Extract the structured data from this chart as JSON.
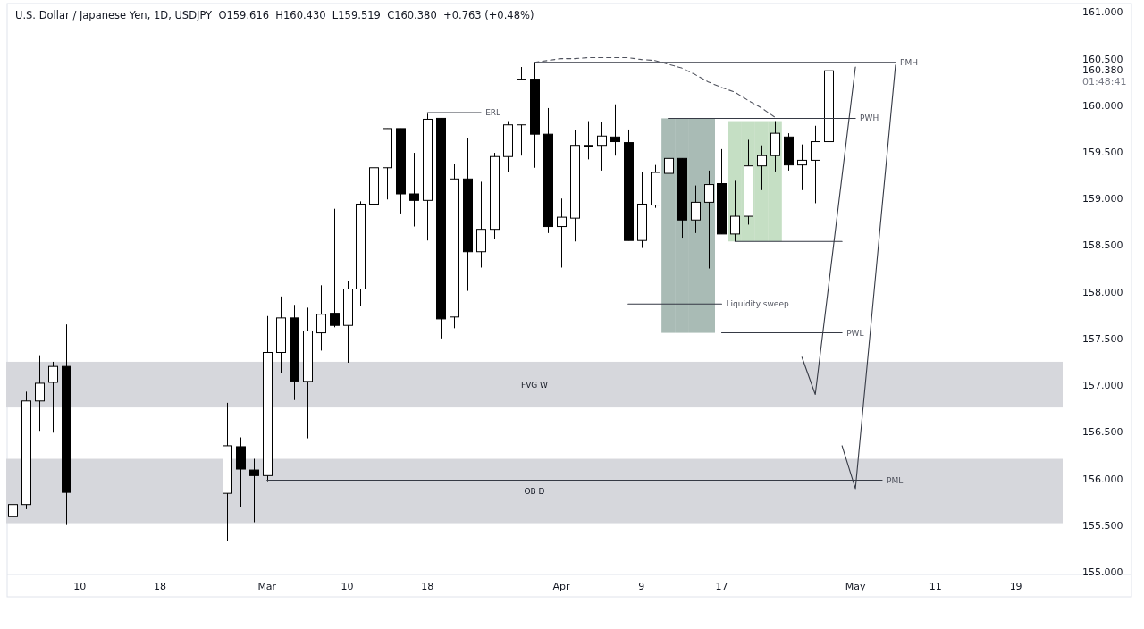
{
  "chart_data": {
    "type": "candlestick",
    "title": "U.S. Dollar / Japanese Yen, 1D, USDJPY  O159.616  H160.430  L159.519  C160.380  +0.763 (+0.48%)",
    "color": "#000000",
    "categories": [
      null,
      null,
      null,
      null,
      null,
      "10",
      null,
      null,
      null,
      null,
      null,
      "18",
      null,
      null,
      null,
      null,
      null,
      null,
      null,
      "Mar",
      null,
      null,
      null,
      null,
      null,
      "10",
      null,
      null,
      null,
      null,
      null,
      "18",
      null,
      null,
      null,
      null,
      null,
      null,
      null,
      null,
      null,
      "Apr",
      null,
      null,
      null,
      null,
      null,
      "9",
      null,
      null,
      null,
      null,
      null,
      "17",
      null,
      null,
      null,
      null,
      null,
      null,
      null,
      null,
      null,
      "May",
      null,
      null,
      null,
      null,
      null,
      "11",
      null,
      null,
      null,
      null,
      null,
      "19",
      null,
      null,
      null
    ],
    "ohlc": [
      [
        155.6,
        156.08,
        155.28,
        155.73
      ],
      [
        155.73,
        156.94,
        155.68,
        156.84
      ],
      [
        156.84,
        157.33,
        156.52,
        157.03
      ],
      [
        157.04,
        157.26,
        156.5,
        157.21
      ],
      [
        157.21,
        157.66,
        155.51,
        155.86
      ],
      null,
      null,
      null,
      null,
      null,
      null,
      null,
      null,
      null,
      null,
      null,
      [
        155.85,
        156.82,
        155.34,
        156.36
      ],
      [
        156.35,
        156.45,
        155.7,
        156.11
      ],
      [
        156.1,
        156.22,
        155.54,
        156.04
      ],
      [
        156.04,
        157.75,
        155.98,
        157.36
      ],
      [
        157.36,
        157.96,
        157.14,
        157.73
      ],
      [
        157.73,
        157.87,
        156.85,
        157.05
      ],
      [
        157.05,
        157.84,
        156.44,
        157.59
      ],
      [
        157.57,
        158.08,
        157.38,
        157.77
      ],
      [
        157.78,
        158.9,
        157.63,
        157.65
      ],
      [
        157.65,
        158.13,
        157.25,
        158.04
      ],
      [
        158.04,
        158.98,
        157.86,
        158.95
      ],
      [
        158.95,
        159.43,
        158.56,
        159.34
      ],
      [
        159.34,
        159.76,
        159.0,
        159.76
      ],
      [
        159.76,
        159.76,
        158.85,
        159.06
      ],
      [
        159.06,
        159.5,
        158.71,
        158.99
      ],
      [
        158.99,
        159.92,
        158.56,
        159.86
      ],
      [
        159.87,
        159.87,
        157.51,
        157.72
      ],
      [
        157.74,
        159.38,
        157.62,
        159.22
      ],
      [
        159.22,
        159.66,
        158.02,
        158.44
      ],
      [
        158.44,
        159.19,
        158.27,
        158.68
      ],
      [
        158.68,
        159.5,
        158.58,
        159.46
      ],
      [
        159.46,
        159.84,
        159.29,
        159.8
      ],
      [
        159.8,
        160.42,
        159.47,
        160.29
      ],
      [
        160.29,
        160.47,
        159.34,
        159.7
      ],
      [
        159.7,
        159.98,
        158.64,
        158.71
      ],
      [
        158.71,
        159.01,
        158.27,
        158.81
      ],
      [
        158.8,
        159.74,
        158.55,
        159.58
      ],
      [
        159.58,
        159.84,
        159.43,
        159.58
      ],
      [
        159.58,
        159.83,
        159.31,
        159.68
      ],
      [
        159.67,
        160.02,
        159.47,
        159.62
      ],
      [
        159.61,
        159.75,
        158.56,
        158.56
      ],
      [
        158.56,
        159.29,
        158.48,
        158.95
      ],
      [
        158.94,
        159.37,
        158.91,
        159.29
      ],
      [
        159.28,
        159.44,
        159.28,
        159.44
      ],
      [
        159.44,
        159.44,
        158.59,
        158.78
      ],
      [
        158.78,
        159.15,
        158.64,
        158.97
      ],
      [
        158.97,
        159.31,
        158.26,
        159.16
      ],
      [
        159.17,
        159.54,
        158.63,
        158.63
      ],
      [
        158.63,
        159.2,
        158.55,
        158.82
      ],
      [
        158.82,
        159.64,
        158.73,
        159.36
      ],
      [
        159.36,
        159.58,
        159.1,
        159.47
      ],
      [
        159.47,
        159.84,
        159.3,
        159.71
      ],
      [
        159.67,
        159.71,
        159.31,
        159.37
      ],
      [
        159.37,
        159.59,
        159.1,
        159.42
      ],
      [
        159.42,
        159.79,
        158.96,
        159.62
      ],
      [
        159.62,
        160.43,
        159.52,
        160.38
      ],
      null,
      null,
      null,
      null,
      null,
      null,
      null,
      null,
      null,
      null,
      null,
      null,
      null,
      null,
      null,
      null,
      null
    ],
    "ylim": [
      154.98,
      161.1
    ],
    "yticks": [
      {
        "value": 155,
        "label": "155.000"
      },
      {
        "value": 155.5,
        "label": "155.500"
      },
      {
        "value": 156,
        "label": "156.000"
      },
      {
        "value": 156.5,
        "label": "156.500"
      },
      {
        "value": 157,
        "label": "157.000"
      },
      {
        "value": 157.5,
        "label": "157.500"
      },
      {
        "value": 158,
        "label": "158.000"
      },
      {
        "value": 158.5,
        "label": "158.500"
      },
      {
        "value": 159,
        "label": "159.000"
      },
      {
        "value": 159.5,
        "label": "159.500"
      },
      {
        "value": 160,
        "label": "160.000"
      },
      {
        "value": 160.38,
        "label": "160.380"
      },
      {
        "value": 160.5,
        "label": "160.500"
      },
      {
        "value": 161,
        "label": "161.000"
      }
    ],
    "bands": [
      {
        "axis": "y",
        "from": 156.77,
        "to": 157.26,
        "label": "FVG W",
        "color": "#d6d7dc"
      },
      {
        "axis": "y",
        "from": 155.53,
        "to": 156.22,
        "label": "OB D",
        "color": "#d6d7dc"
      }
    ],
    "series": [
      {
        "type": "bar",
        "color": "#a9bbb5",
        "values": [
          null,
          null,
          null,
          null,
          null,
          null,
          null,
          null,
          null,
          null,
          null,
          null,
          null,
          null,
          null,
          null,
          null,
          null,
          null,
          null,
          null,
          null,
          null,
          null,
          null,
          null,
          null,
          null,
          null,
          null,
          null,
          null,
          null,
          null,
          null,
          null,
          null,
          null,
          null,
          null,
          null,
          null,
          null,
          null,
          null,
          null,
          null,
          null,
          null,
          2.3,
          2.3,
          2.3,
          2.3,
          null,
          null,
          null,
          null,
          null,
          null,
          null,
          null,
          null,
          null,
          null,
          null,
          null,
          null,
          null,
          null,
          null,
          null,
          null,
          null,
          null,
          null,
          null,
          null,
          null,
          null
        ],
        "base": [
          null,
          null,
          null,
          null,
          null,
          null,
          null,
          null,
          null,
          null,
          null,
          null,
          null,
          null,
          null,
          null,
          null,
          null,
          null,
          null,
          null,
          null,
          null,
          null,
          null,
          null,
          null,
          null,
          null,
          null,
          null,
          null,
          null,
          null,
          null,
          null,
          null,
          null,
          null,
          null,
          null,
          null,
          null,
          null,
          null,
          null,
          null,
          null,
          null,
          157.57,
          157.57,
          157.57,
          157.57,
          null,
          null,
          null,
          null,
          null,
          null,
          null,
          null,
          null,
          null,
          null,
          null,
          null,
          null,
          null,
          null,
          null,
          null,
          null,
          null,
          null,
          null,
          null,
          null,
          null,
          null
        ]
      },
      {
        "type": "bar",
        "color": "#c5dfc4",
        "values": [
          null,
          null,
          null,
          null,
          null,
          null,
          null,
          null,
          null,
          null,
          null,
          null,
          null,
          null,
          null,
          null,
          null,
          null,
          null,
          null,
          null,
          null,
          null,
          null,
          null,
          null,
          null,
          null,
          null,
          null,
          null,
          null,
          null,
          null,
          null,
          null,
          null,
          null,
          null,
          null,
          null,
          null,
          null,
          null,
          null,
          null,
          null,
          null,
          null,
          null,
          null,
          null,
          null,
          null,
          1.29,
          1.29,
          1.29,
          1.29,
          null,
          null,
          null,
          null,
          null,
          null,
          null,
          null,
          null,
          null,
          null,
          null,
          null,
          null,
          null,
          null,
          null,
          null,
          null,
          null,
          null
        ],
        "base": [
          null,
          null,
          null,
          null,
          null,
          null,
          null,
          null,
          null,
          null,
          null,
          null,
          null,
          null,
          null,
          null,
          null,
          null,
          null,
          null,
          null,
          null,
          null,
          null,
          null,
          null,
          null,
          null,
          null,
          null,
          null,
          null,
          null,
          null,
          null,
          null,
          null,
          null,
          null,
          null,
          null,
          null,
          null,
          null,
          null,
          null,
          null,
          null,
          null,
          null,
          null,
          null,
          null,
          null,
          158.55,
          158.55,
          158.55,
          158.55,
          null,
          null,
          null,
          null,
          null,
          null,
          null,
          null,
          null,
          null,
          null,
          null,
          null,
          null,
          null,
          null,
          null,
          null,
          null,
          null,
          null
        ]
      },
      {
        "type": "line",
        "name": "ERL",
        "color": "#363a45",
        "values": [
          null,
          null,
          null,
          null,
          null,
          null,
          null,
          null,
          null,
          null,
          null,
          null,
          null,
          null,
          null,
          null,
          null,
          null,
          null,
          null,
          null,
          null,
          null,
          null,
          null,
          null,
          null,
          null,
          null,
          null,
          null,
          159.93,
          159.93,
          159.93,
          159.93,
          159.93,
          null,
          null,
          null,
          null,
          null,
          null,
          null,
          null,
          null,
          null,
          null,
          null,
          null,
          null,
          null,
          null,
          null,
          null,
          null,
          null,
          null,
          null,
          null,
          null,
          null,
          null,
          null,
          null,
          null,
          null,
          null,
          null,
          null,
          null,
          null,
          null,
          null,
          null,
          null,
          null,
          null,
          null,
          null
        ]
      },
      {
        "type": "line",
        "name": "PMH",
        "color": "#363a45",
        "values": [
          null,
          null,
          null,
          null,
          null,
          null,
          null,
          null,
          null,
          null,
          null,
          null,
          null,
          null,
          null,
          null,
          null,
          null,
          null,
          null,
          null,
          null,
          null,
          null,
          null,
          null,
          null,
          null,
          null,
          null,
          null,
          null,
          null,
          null,
          null,
          null,
          null,
          null,
          null,
          160.47,
          160.47,
          160.47,
          160.47,
          160.47,
          160.47,
          160.47,
          160.47,
          160.47,
          160.47,
          160.47,
          160.47,
          160.47,
          160.47,
          160.47,
          160.47,
          160.47,
          160.47,
          160.47,
          160.47,
          160.47,
          160.47,
          160.47,
          160.47,
          160.47,
          160.47,
          160.47,
          160.47,
          null,
          null,
          null,
          null,
          null,
          null,
          null,
          null,
          null,
          null,
          null,
          null
        ]
      },
      {
        "type": "line",
        "color": "#50535e",
        "line_style": "dashed",
        "values": [
          null,
          null,
          null,
          null,
          null,
          null,
          null,
          null,
          null,
          null,
          null,
          null,
          null,
          null,
          null,
          null,
          null,
          null,
          null,
          null,
          null,
          null,
          null,
          null,
          null,
          null,
          null,
          null,
          null,
          null,
          null,
          null,
          null,
          null,
          null,
          null,
          null,
          null,
          null,
          160.47,
          160.49,
          160.51,
          160.51,
          160.52,
          160.52,
          160.52,
          160.52,
          160.5,
          160.49,
          160.45,
          160.41,
          160.34,
          160.26,
          160.2,
          160.15,
          160.06,
          159.98,
          159.88,
          null,
          null,
          null,
          null,
          null,
          null,
          null,
          null,
          null,
          null,
          null,
          null,
          null,
          null,
          null,
          null,
          null,
          null,
          null,
          null,
          null
        ]
      },
      {
        "type": "line",
        "name": "PWH",
        "color": "#363a45",
        "values": [
          null,
          null,
          null,
          null,
          null,
          null,
          null,
          null,
          null,
          null,
          null,
          null,
          null,
          null,
          null,
          null,
          null,
          null,
          null,
          null,
          null,
          null,
          null,
          null,
          null,
          null,
          null,
          null,
          null,
          null,
          null,
          null,
          null,
          null,
          null,
          null,
          null,
          null,
          null,
          null,
          null,
          null,
          null,
          null,
          null,
          null,
          null,
          null,
          null,
          159.87,
          159.87,
          159.87,
          159.87,
          159.87,
          159.87,
          159.87,
          159.87,
          159.87,
          159.87,
          159.87,
          159.87,
          159.87,
          159.87,
          159.87,
          null,
          null,
          null,
          null,
          null,
          null,
          null,
          null,
          null,
          null,
          null,
          null,
          null,
          null,
          null
        ]
      },
      {
        "type": "line",
        "color": "#363a45",
        "values": [
          null,
          null,
          null,
          null,
          null,
          null,
          null,
          null,
          null,
          null,
          null,
          null,
          null,
          null,
          null,
          null,
          null,
          null,
          null,
          null,
          null,
          null,
          null,
          null,
          null,
          null,
          null,
          null,
          null,
          null,
          null,
          null,
          null,
          null,
          null,
          null,
          null,
          null,
          null,
          null,
          null,
          null,
          null,
          null,
          null,
          null,
          null,
          null,
          null,
          null,
          null,
          null,
          null,
          null,
          158.55,
          158.55,
          158.55,
          158.55,
          158.55,
          158.55,
          158.55,
          158.55,
          158.55,
          null,
          null,
          null,
          null,
          null,
          null,
          null,
          null,
          null,
          null,
          null,
          null,
          null,
          null,
          null,
          null
        ]
      },
      {
        "type": "line",
        "name": "Liquidity sweep",
        "color": "#363a45",
        "values": [
          null,
          null,
          null,
          null,
          null,
          null,
          null,
          null,
          null,
          null,
          null,
          null,
          null,
          null,
          null,
          null,
          null,
          null,
          null,
          null,
          null,
          null,
          null,
          null,
          null,
          null,
          null,
          null,
          null,
          null,
          null,
          null,
          null,
          null,
          null,
          null,
          null,
          null,
          null,
          null,
          null,
          null,
          null,
          null,
          null,
          null,
          157.88,
          157.88,
          157.88,
          157.88,
          157.88,
          157.88,
          157.88,
          157.88,
          null,
          null,
          null,
          null,
          null,
          null,
          null,
          null,
          null,
          null,
          null,
          null,
          null,
          null,
          null,
          null,
          null,
          null,
          null,
          null,
          null,
          null,
          null,
          null,
          null
        ]
      },
      {
        "type": "line",
        "name": "PWL",
        "color": "#363a45",
        "values": [
          null,
          null,
          null,
          null,
          null,
          null,
          null,
          null,
          null,
          null,
          null,
          null,
          null,
          null,
          null,
          null,
          null,
          null,
          null,
          null,
          null,
          null,
          null,
          null,
          null,
          null,
          null,
          null,
          null,
          null,
          null,
          null,
          null,
          null,
          null,
          null,
          null,
          null,
          null,
          null,
          null,
          null,
          null,
          null,
          null,
          null,
          null,
          null,
          null,
          null,
          null,
          null,
          null,
          157.57,
          157.57,
          157.57,
          157.57,
          157.57,
          157.57,
          157.57,
          157.57,
          157.57,
          157.57,
          null,
          null,
          null,
          null,
          null,
          null,
          null,
          null,
          null,
          null,
          null,
          null,
          null,
          null,
          null,
          null
        ]
      },
      {
        "type": "line",
        "name": "PML",
        "color": "#363a45",
        "values": [
          null,
          null,
          null,
          null,
          null,
          null,
          null,
          null,
          null,
          null,
          null,
          null,
          null,
          null,
          null,
          null,
          null,
          null,
          null,
          155.99,
          155.99,
          155.99,
          155.99,
          155.99,
          155.99,
          155.99,
          155.99,
          155.99,
          155.99,
          155.99,
          155.99,
          155.99,
          155.99,
          155.99,
          155.99,
          155.99,
          155.99,
          155.99,
          155.99,
          155.99,
          155.99,
          155.99,
          155.99,
          155.99,
          155.99,
          155.99,
          155.99,
          155.99,
          155.99,
          155.99,
          155.99,
          155.99,
          155.99,
          155.99,
          155.99,
          155.99,
          155.99,
          155.99,
          155.99,
          155.99,
          155.99,
          155.99,
          155.99,
          155.99,
          155.99,
          155.99,
          null,
          null,
          null,
          null,
          null,
          null,
          null,
          null,
          null,
          null,
          null,
          null,
          null
        ]
      },
      {
        "type": "line",
        "color": "#363a45",
        "values": [
          null,
          null,
          null,
          null,
          null,
          null,
          null,
          null,
          null,
          null,
          null,
          null,
          null,
          null,
          null,
          null,
          null,
          null,
          null,
          null,
          null,
          null,
          null,
          null,
          null,
          null,
          null,
          null,
          null,
          null,
          null,
          null,
          null,
          null,
          null,
          null,
          null,
          null,
          null,
          null,
          null,
          null,
          null,
          null,
          null,
          null,
          null,
          null,
          null,
          null,
          null,
          null,
          null,
          null,
          null,
          null,
          null,
          null,
          null,
          157.31,
          156.91,
          158.08,
          159.25,
          160.42,
          null,
          null,
          null,
          null,
          null,
          null,
          null,
          null,
          null,
          null,
          null,
          null,
          null,
          null,
          null
        ]
      },
      {
        "type": "line",
        "color": "#363a45",
        "values": [
          null,
          null,
          null,
          null,
          null,
          null,
          null,
          null,
          null,
          null,
          null,
          null,
          null,
          null,
          null,
          null,
          null,
          null,
          null,
          null,
          null,
          null,
          null,
          null,
          null,
          null,
          null,
          null,
          null,
          null,
          null,
          null,
          null,
          null,
          null,
          null,
          null,
          null,
          null,
          null,
          null,
          null,
          null,
          null,
          null,
          null,
          null,
          null,
          null,
          null,
          null,
          null,
          null,
          null,
          null,
          null,
          null,
          null,
          null,
          null,
          null,
          null,
          156.36,
          155.9,
          157.41,
          158.93,
          160.44,
          null,
          null,
          null,
          null,
          null,
          null,
          null,
          null,
          null,
          null,
          null,
          null
        ]
      }
    ],
    "annotations": [
      "01:48:41"
    ]
  }
}
